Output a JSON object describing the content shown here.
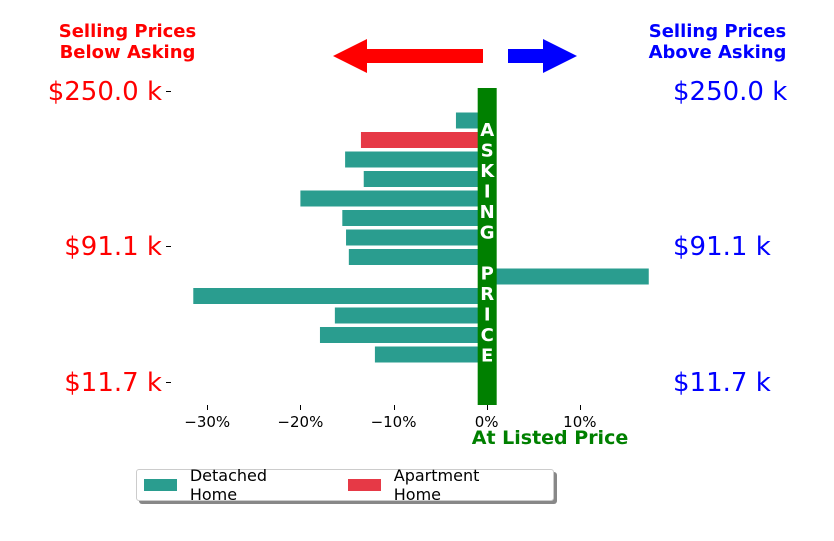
{
  "headers": {
    "below": [
      "Selling Prices",
      "Below Asking"
    ],
    "above": [
      "Selling Prices",
      "Above Asking"
    ]
  },
  "arrows": {
    "left_color": "#ff0000",
    "right_color": "#0000ff"
  },
  "center_band": {
    "text_letters": [
      "A",
      "S",
      "K",
      "I",
      "N",
      "G",
      "",
      "P",
      "R",
      "I",
      "C",
      "E"
    ],
    "color": "#008000"
  },
  "colors": {
    "detached": "#2a9d8f",
    "apartment": "#e63946",
    "listed": "#008000",
    "below": "#ff0000",
    "above": "#0000ff"
  },
  "legend": [
    {
      "label": "Detached Home",
      "color": "#2a9d8f"
    },
    {
      "label": "Apartment Home",
      "color": "#e63946"
    }
  ],
  "chart_data": {
    "type": "bar",
    "orientation": "horizontal",
    "xlabel": "At Listed Price",
    "x_ticks": [
      "−30%",
      "−20%",
      "−10%",
      "0%",
      "10%"
    ],
    "x_tick_values": [
      -30,
      -20,
      -10,
      0,
      10
    ],
    "xlim": [
      -34,
      18.5
    ],
    "y_labels_left": [
      "$250.0 k",
      "$91.1 k",
      "$11.7 k"
    ],
    "y_labels_right": [
      "$250.0 k",
      "$91.1 k",
      "$11.7 k"
    ],
    "bars": [
      {
        "value": 1.0,
        "type": "Detached Home"
      },
      {
        "value": -3.3,
        "type": "Detached Home"
      },
      {
        "value": -13.5,
        "type": "Apartment Home"
      },
      {
        "value": -15.2,
        "type": "Detached Home"
      },
      {
        "value": -13.2,
        "type": "Detached Home"
      },
      {
        "value": -20.0,
        "type": "Detached Home"
      },
      {
        "value": -15.5,
        "type": "Detached Home"
      },
      {
        "value": -15.1,
        "type": "Detached Home"
      },
      {
        "value": -14.8,
        "type": "Detached Home"
      },
      {
        "value": 17.4,
        "type": "Detached Home"
      },
      {
        "value": -31.5,
        "type": "Detached Home"
      },
      {
        "value": -16.3,
        "type": "Detached Home"
      },
      {
        "value": -17.9,
        "type": "Detached Home"
      },
      {
        "value": -12.0,
        "type": "Detached Home"
      }
    ]
  }
}
